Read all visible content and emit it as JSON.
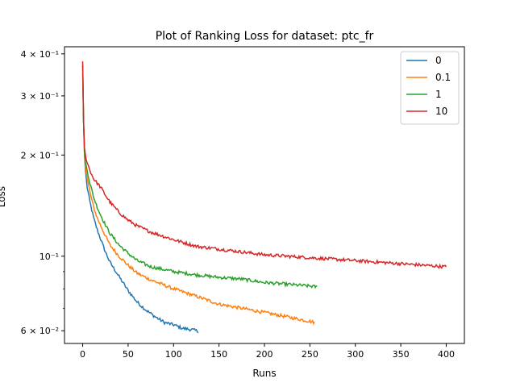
{
  "chart_data": {
    "type": "line",
    "title": "Plot of Ranking Loss for dataset: ptc_fr",
    "xlabel": "Runs",
    "ylabel": "Loss",
    "yscale": "log",
    "xlim": [
      -20,
      420
    ],
    "ylim": [
      0.055,
      0.42
    ],
    "xticks": [
      0,
      50,
      100,
      150,
      200,
      250,
      300,
      350,
      400
    ],
    "xtick_labels": [
      "0",
      "50",
      "100",
      "150",
      "200",
      "250",
      "300",
      "350",
      "400"
    ],
    "yticks_major": [
      0.06,
      0.1,
      0.2,
      0.3,
      0.4
    ],
    "ytick_labels": [
      "6 × 10⁻²",
      "10⁻¹",
      "2 × 10⁻¹",
      "3 × 10⁻¹",
      "4 × 10⁻¹"
    ],
    "yticks_minor": [
      0.07,
      0.08,
      0.09
    ],
    "legend_position": "top-right",
    "grid": false,
    "series": [
      {
        "name": "0",
        "color": "#1f77b4",
        "x": [
          0,
          1,
          2,
          3,
          5,
          8,
          12,
          16,
          20,
          25,
          30,
          40,
          50,
          60,
          70,
          80,
          90,
          100,
          110,
          120,
          127
        ],
        "y": [
          0.35,
          0.25,
          0.2,
          0.18,
          0.16,
          0.145,
          0.13,
          0.12,
          0.112,
          0.103,
          0.096,
          0.087,
          0.079,
          0.073,
          0.069,
          0.066,
          0.0635,
          0.0625,
          0.061,
          0.0605,
          0.0598
        ]
      },
      {
        "name": "0.1",
        "color": "#ff7f0e",
        "x": [
          0,
          1,
          2,
          3,
          5,
          8,
          12,
          16,
          20,
          25,
          30,
          40,
          50,
          60,
          75,
          100,
          125,
          150,
          175,
          200,
          225,
          250,
          255
        ],
        "y": [
          0.37,
          0.25,
          0.2,
          0.185,
          0.17,
          0.155,
          0.14,
          0.13,
          0.123,
          0.115,
          0.108,
          0.1,
          0.094,
          0.089,
          0.085,
          0.08,
          0.076,
          0.072,
          0.07,
          0.068,
          0.066,
          0.064,
          0.0635
        ]
      },
      {
        "name": "1",
        "color": "#2ca02c",
        "x": [
          0,
          1,
          2,
          3,
          5,
          8,
          12,
          16,
          20,
          25,
          30,
          40,
          50,
          60,
          75,
          100,
          125,
          150,
          175,
          200,
          225,
          250,
          258
        ],
        "y": [
          0.37,
          0.25,
          0.205,
          0.19,
          0.18,
          0.165,
          0.15,
          0.14,
          0.132,
          0.124,
          0.117,
          0.108,
          0.102,
          0.097,
          0.093,
          0.09,
          0.088,
          0.0865,
          0.0855,
          0.0835,
          0.0825,
          0.0815,
          0.081
        ]
      },
      {
        "name": "10",
        "color": "#d62728",
        "x": [
          0,
          1,
          2,
          3,
          5,
          8,
          12,
          16,
          20,
          25,
          30,
          40,
          50,
          60,
          75,
          100,
          125,
          150,
          175,
          200,
          225,
          250,
          275,
          300,
          325,
          350,
          375,
          400
        ],
        "y": [
          0.38,
          0.25,
          0.21,
          0.2,
          0.19,
          0.18,
          0.17,
          0.165,
          0.16,
          0.152,
          0.145,
          0.135,
          0.128,
          0.123,
          0.118,
          0.112,
          0.107,
          0.105,
          0.103,
          0.101,
          0.1,
          0.099,
          0.098,
          0.097,
          0.096,
          0.095,
          0.094,
          0.093
        ]
      }
    ]
  }
}
